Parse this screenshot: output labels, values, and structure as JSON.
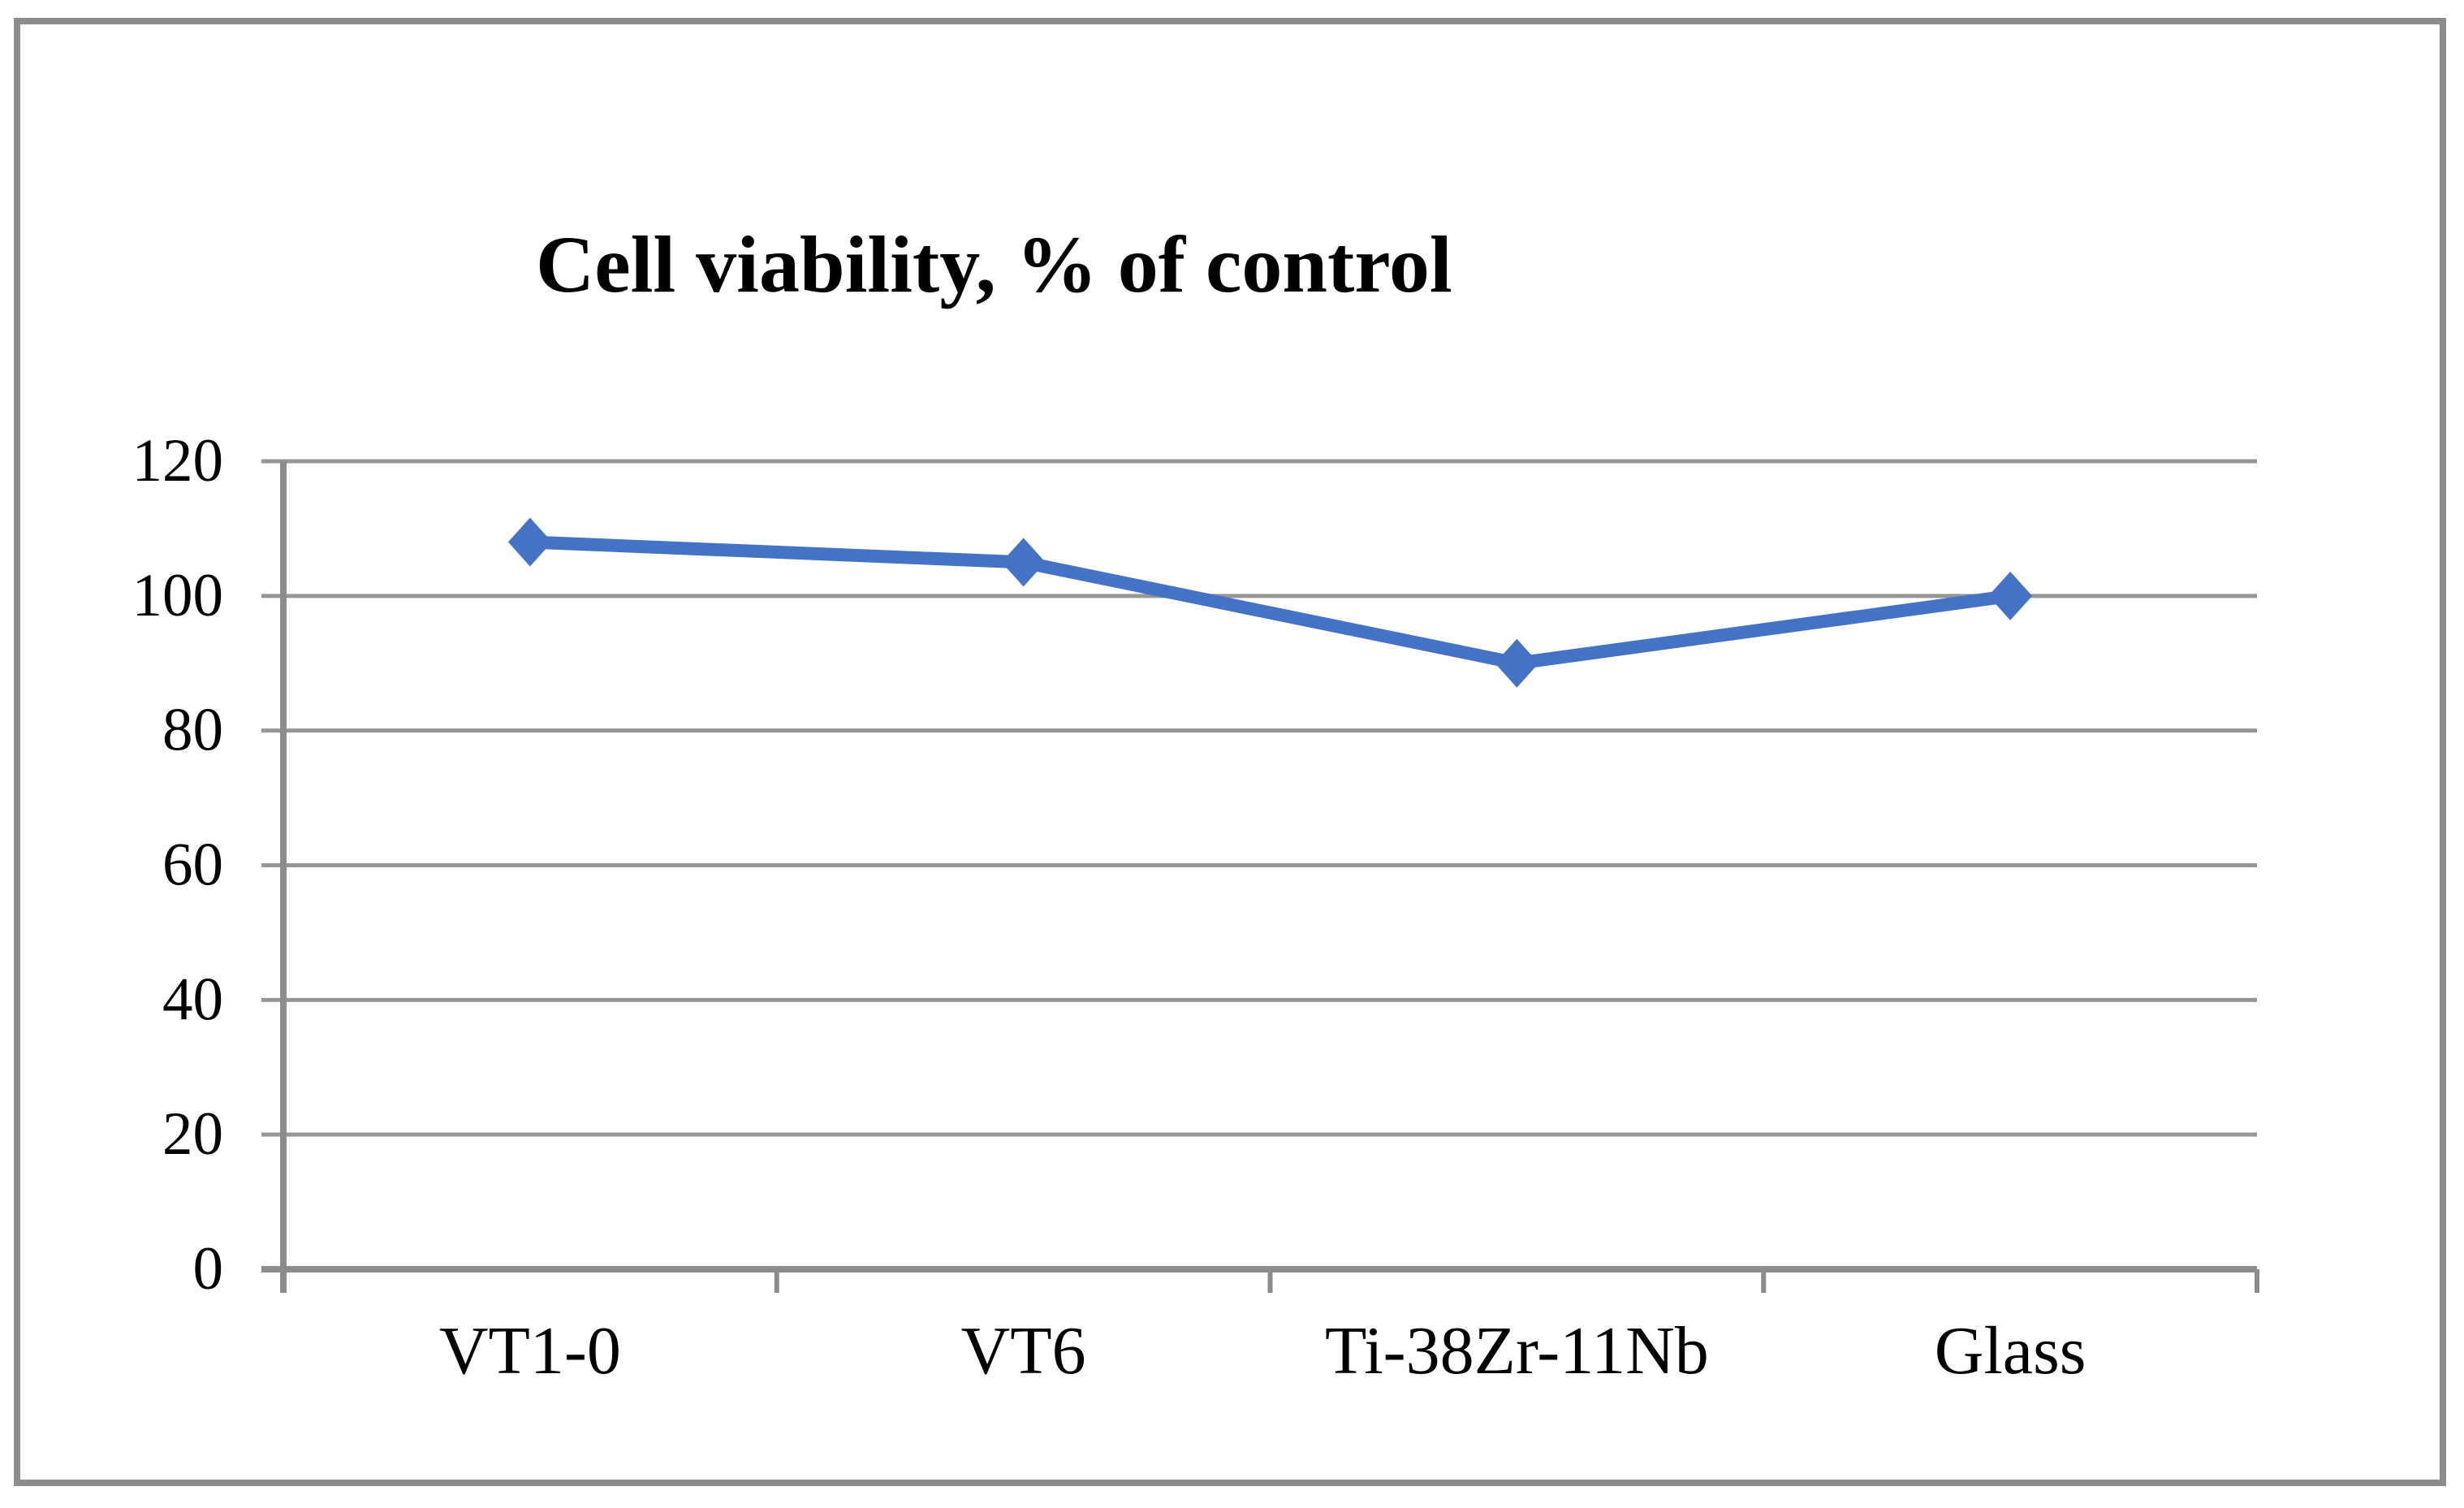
{
  "chart_data": {
    "type": "line",
    "title": "Cell viability, % of control",
    "categories": [
      "VT1-0",
      "VT6",
      "Ti-38Zr-11Nb",
      "Glass"
    ],
    "values": [
      108,
      105,
      90,
      100
    ],
    "xlabel": "",
    "ylabel": "",
    "ylim": [
      0,
      120
    ],
    "yticks": [
      0,
      20,
      40,
      60,
      80,
      100,
      120
    ],
    "grid": "horizontal-major",
    "legend": "none",
    "marker": "diamond"
  },
  "colors": {
    "line": "#4472C4",
    "marker": "#4472C4",
    "gridline": "#969696",
    "axis": "#8C8C8C",
    "frame_border": "#8C8C8C",
    "text": "#000000",
    "background": "#FFFFFF"
  }
}
